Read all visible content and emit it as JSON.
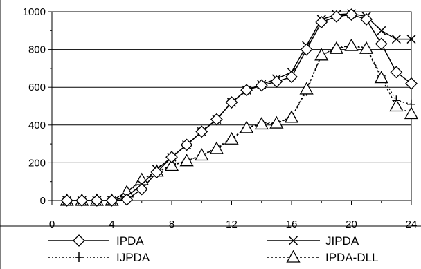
{
  "chart_data": {
    "type": "line",
    "title": "",
    "xlabel": "",
    "ylabel": "",
    "x": [
      1,
      2,
      3,
      4,
      5,
      6,
      7,
      8,
      9,
      10,
      11,
      12,
      13,
      14,
      15,
      16,
      17,
      18,
      19,
      20,
      21,
      22,
      23,
      24
    ],
    "xlim": [
      0,
      24
    ],
    "ylim": [
      0,
      1000
    ],
    "xticks": [
      "0",
      "4",
      "8",
      "12",
      "16",
      "20",
      "24"
    ],
    "yticks": [
      "0",
      "200",
      "400",
      "600",
      "800",
      "1000"
    ],
    "grid": "horizontal",
    "legend_position": "bottom",
    "series": [
      {
        "name": "IPDA",
        "marker": "diamond",
        "line": "solid",
        "values": [
          0,
          0,
          0,
          0,
          5,
          60,
          150,
          230,
          295,
          365,
          430,
          520,
          585,
          610,
          630,
          655,
          800,
          945,
          975,
          985,
          960,
          830,
          680,
          620
        ]
      },
      {
        "name": "JIPDA",
        "marker": "x",
        "line": "solid",
        "values": [
          0,
          0,
          0,
          0,
          20,
          85,
          165,
          230,
          295,
          365,
          430,
          520,
          585,
          615,
          645,
          680,
          820,
          960,
          985,
          990,
          975,
          900,
          855,
          855
        ]
      },
      {
        "name": "IJPDA",
        "marker": "plus",
        "line": "dotted",
        "values": [
          0,
          0,
          0,
          0,
          45,
          100,
          145,
          190,
          210,
          240,
          280,
          330,
          385,
          410,
          415,
          440,
          580,
          770,
          810,
          820,
          810,
          660,
          530,
          510
        ]
      },
      {
        "name": "IPDA-DLL",
        "marker": "triangle",
        "line": "dashed",
        "values": [
          0,
          0,
          0,
          0,
          45,
          110,
          155,
          185,
          210,
          240,
          275,
          325,
          385,
          405,
          410,
          440,
          590,
          770,
          805,
          820,
          805,
          650,
          500,
          460
        ]
      }
    ]
  }
}
